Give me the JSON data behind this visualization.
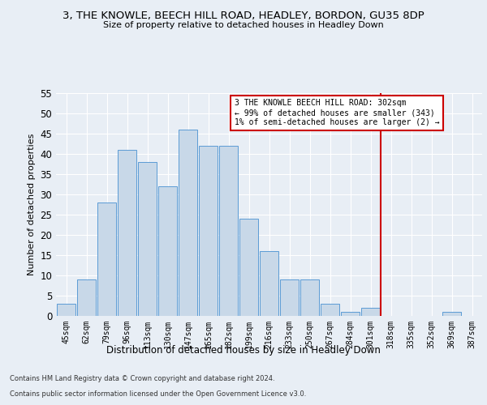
{
  "title1": "3, THE KNOWLE, BEECH HILL ROAD, HEADLEY, BORDON, GU35 8DP",
  "title2": "Size of property relative to detached houses in Headley Down",
  "xlabel": "Distribution of detached houses by size in Headley Down",
  "ylabel": "Number of detached properties",
  "categories": [
    "45sqm",
    "62sqm",
    "79sqm",
    "96sqm",
    "113sqm",
    "130sqm",
    "147sqm",
    "165sqm",
    "182sqm",
    "199sqm",
    "216sqm",
    "233sqm",
    "250sqm",
    "267sqm",
    "284sqm",
    "301sqm",
    "318sqm",
    "335sqm",
    "352sqm",
    "369sqm",
    "387sqm"
  ],
  "values": [
    3,
    9,
    28,
    41,
    38,
    32,
    46,
    42,
    42,
    24,
    16,
    9,
    9,
    3,
    1,
    2,
    0,
    0,
    0,
    1,
    0
  ],
  "bar_color": "#c8d8e8",
  "bar_edge_color": "#5b9bd5",
  "annotation_text": "3 THE KNOWLE BEECH HILL ROAD: 302sqm\n← 99% of detached houses are smaller (343)\n1% of semi-detached houses are larger (2) →",
  "vline_color": "#cc0000",
  "annotation_box_color": "#cc0000",
  "ylim": [
    0,
    55
  ],
  "yticks": [
    0,
    5,
    10,
    15,
    20,
    25,
    30,
    35,
    40,
    45,
    50,
    55
  ],
  "footer1": "Contains HM Land Registry data © Crown copyright and database right 2024.",
  "footer2": "Contains public sector information licensed under the Open Government Licence v3.0.",
  "background_color": "#e8eef5",
  "plot_background_color": "#e8eef5",
  "title1_fontsize": 9.5,
  "title2_fontsize": 8.0,
  "xlabel_fontsize": 8.5,
  "ylabel_fontsize": 8.0,
  "annotation_fontsize": 7.0,
  "footer_fontsize": 6.0
}
